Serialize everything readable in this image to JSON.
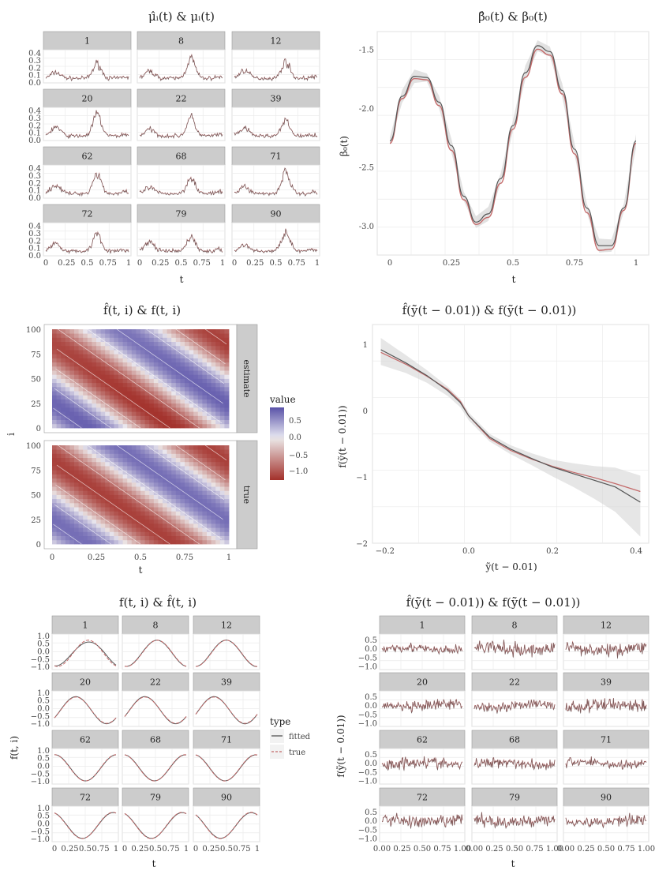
{
  "colors": {
    "fitted": "#555555",
    "true": "#c46a6a",
    "strip": "#cccccc",
    "grid": "#ebebeb",
    "band": "#d6d6d6"
  },
  "chart_data": [
    {
      "id": "p1",
      "type": "line",
      "title": "μ̂ᵢ(t) & μᵢ(t)",
      "xlabel": "t",
      "ylabel": "",
      "panels": [
        "1",
        "8",
        "12",
        "20",
        "22",
        "39",
        "62",
        "68",
        "71",
        "72",
        "79",
        "90"
      ],
      "xticks": [
        "0",
        "0.25",
        "0.5",
        "0.75",
        "1"
      ],
      "yticks": [
        "0.0",
        "0.1",
        "0.2",
        "0.3",
        "0.4"
      ],
      "xlim": [
        0,
        1
      ],
      "ylim": [
        0,
        0.45
      ]
    },
    {
      "id": "p2",
      "type": "line",
      "title": "β̂₀(t) & β₀(t)",
      "xlabel": "t",
      "ylabel": "β₀(t)",
      "xticks": [
        "0",
        "0.25",
        "0.5",
        "0.75",
        "1"
      ],
      "yticks": [
        "-3.0",
        "-2.5",
        "-2.0",
        "-1.5"
      ],
      "xlim": [
        0,
        1
      ],
      "ylim": [
        -3.25,
        -1.35
      ],
      "series": [
        {
          "name": "fitted",
          "x": [
            0,
            0.05,
            0.1,
            0.15,
            0.2,
            0.25,
            0.3,
            0.35,
            0.4,
            0.45,
            0.5,
            0.55,
            0.6,
            0.65,
            0.7,
            0.75,
            0.8,
            0.85,
            0.9,
            0.95,
            1
          ],
          "y": [
            -2.28,
            -1.9,
            -1.73,
            -1.74,
            -1.95,
            -2.32,
            -2.75,
            -2.97,
            -2.9,
            -2.6,
            -2.15,
            -1.7,
            -1.47,
            -1.52,
            -1.85,
            -2.35,
            -2.85,
            -3.17,
            -3.17,
            -2.85,
            -2.28
          ]
        },
        {
          "name": "true",
          "x": [
            0,
            0.05,
            0.1,
            0.15,
            0.2,
            0.25,
            0.3,
            0.35,
            0.4,
            0.45,
            0.5,
            0.55,
            0.6,
            0.65,
            0.7,
            0.75,
            0.8,
            0.85,
            0.9,
            0.95,
            1
          ],
          "y": [
            -2.3,
            -1.92,
            -1.75,
            -1.76,
            -1.98,
            -2.36,
            -2.78,
            -2.99,
            -2.93,
            -2.64,
            -2.18,
            -1.74,
            -1.5,
            -1.55,
            -1.88,
            -2.39,
            -2.89,
            -3.21,
            -3.2,
            -2.87,
            -2.3
          ]
        }
      ]
    },
    {
      "id": "p3",
      "type": "heatmap",
      "title": "f̂(t, i) & f(t, i)",
      "xlabel": "t",
      "ylabel": "i",
      "panels": [
        "estimate",
        "true"
      ],
      "xticks": [
        "0",
        "0.25",
        "0.5",
        "0.75",
        "1"
      ],
      "yticks": [
        "0",
        "25",
        "50",
        "75",
        "100"
      ],
      "xlim": [
        0,
        1
      ],
      "ylim": [
        0,
        100
      ],
      "legend": {
        "title": "value",
        "labels": [
          "0.5",
          "0.0",
          "−0.5",
          "−1.0"
        ],
        "position": "right"
      }
    },
    {
      "id": "p4",
      "type": "line",
      "title": "f̂(ỹ(t − 0.01)) & f(ỹ(t − 0.01))",
      "xlabel": "ỹ(t − 0.01)",
      "ylabel": "f(ỹ(t − 0.01))",
      "xticks": [
        "−0.2",
        "0.0",
        "0.2",
        "0.4"
      ],
      "yticks": [
        "−2",
        "−1",
        "0",
        "1"
      ],
      "xlim": [
        -0.23,
        0.43
      ],
      "ylim": [
        -2,
        1.3
      ],
      "series": [
        {
          "name": "fitted",
          "x": [
            -0.21,
            -0.15,
            -0.1,
            -0.05,
            -0.02,
            0,
            0.05,
            0.1,
            0.15,
            0.2,
            0.25,
            0.3,
            0.35,
            0.41
          ],
          "y": [
            0.92,
            0.72,
            0.53,
            0.3,
            0.12,
            -0.08,
            -0.4,
            -0.58,
            -0.72,
            -0.85,
            -0.95,
            -1.05,
            -1.15,
            -1.38
          ]
        },
        {
          "name": "true",
          "x": [
            -0.21,
            -0.15,
            -0.1,
            -0.05,
            -0.02,
            0,
            0.05,
            0.1,
            0.15,
            0.2,
            0.25,
            0.3,
            0.35,
            0.41
          ],
          "y": [
            0.88,
            0.7,
            0.52,
            0.32,
            0.14,
            -0.08,
            -0.42,
            -0.6,
            -0.73,
            -0.84,
            -0.93,
            -1.01,
            -1.1,
            -1.22
          ]
        }
      ]
    },
    {
      "id": "p5",
      "type": "line",
      "title": "f(t, i) & f̂(t, i)",
      "xlabel": "t",
      "ylabel": "f(t, i)",
      "panels": [
        "1",
        "8",
        "12",
        "20",
        "22",
        "39",
        "62",
        "68",
        "71",
        "72",
        "79",
        "90"
      ],
      "xticks": [
        "0",
        "0.25",
        "0.5",
        "0.75",
        "1"
      ],
      "yticks": [
        "−1.0",
        "−0.5",
        "0.0",
        "0.5",
        "1.0"
      ],
      "xlim": [
        0,
        1
      ],
      "ylim": [
        -1.15,
        1.15
      ],
      "phases": [
        0.0,
        0.02,
        0.05,
        0.2,
        0.22,
        0.25,
        0.55,
        0.57,
        0.58,
        0.6,
        0.62,
        0.65
      ],
      "legend": {
        "title": "type",
        "items": [
          "fitted",
          "true"
        ],
        "position": "right"
      }
    },
    {
      "id": "p6",
      "type": "line",
      "title": "f̂(ỹ(t − 0.01)) & f(ỹ(t − 0.01))",
      "xlabel": "t",
      "ylabel": "f(ỹ(t − 0.01))",
      "panels": [
        "1",
        "8",
        "12",
        "20",
        "22",
        "39",
        "62",
        "68",
        "71",
        "72",
        "79",
        "90"
      ],
      "xticks": [
        "0.00",
        "0.25",
        "0.50",
        "0.75",
        "1.00"
      ],
      "yticks": [
        "−1.0",
        "−0.5",
        "0.0",
        "0.5"
      ],
      "xlim": [
        0,
        1
      ],
      "ylim": [
        -1.15,
        0.85
      ]
    }
  ]
}
